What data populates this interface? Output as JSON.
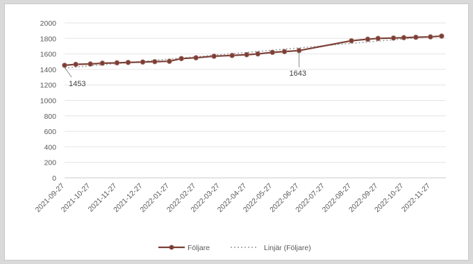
{
  "chart_data": {
    "type": "line",
    "title": "",
    "xlabel": "",
    "ylabel": "",
    "ylim": [
      0,
      2000
    ],
    "yticks": [
      0,
      200,
      400,
      600,
      800,
      1000,
      1200,
      1400,
      1600,
      1800,
      2000
    ],
    "grid": true,
    "legend_position": "bottom",
    "x_tick_labels": [
      "2021-09-27",
      "2021-10-27",
      "2021-11-27",
      "2021-12-27",
      "2022-01-27",
      "2022-02-27",
      "2022-03-27",
      "2022-04-27",
      "2022-05-27",
      "2022-06-27",
      "2022-07-27",
      "2022-08-27",
      "2022-09-27",
      "2022-10-27",
      "2022-11-27"
    ],
    "series": [
      {
        "name": "Följare",
        "color": "#7b3f36",
        "marker": "circle",
        "x": [
          "2021-09-27",
          "2021-10-10",
          "2021-10-27",
          "2021-11-10",
          "2021-11-27",
          "2021-12-10",
          "2021-12-27",
          "2022-01-10",
          "2022-01-27",
          "2022-02-10",
          "2022-02-27",
          "2022-03-20",
          "2022-04-10",
          "2022-04-27",
          "2022-05-10",
          "2022-05-27",
          "2022-06-10",
          "2022-06-27",
          "2022-08-27",
          "2022-09-15",
          "2022-09-27",
          "2022-10-15",
          "2022-10-27",
          "2022-11-10",
          "2022-11-27",
          "2022-12-10"
        ],
        "values": [
          1453,
          1465,
          1470,
          1480,
          1485,
          1490,
          1495,
          1500,
          1505,
          1540,
          1550,
          1570,
          1580,
          1590,
          1600,
          1620,
          1630,
          1643,
          1770,
          1790,
          1800,
          1805,
          1810,
          1815,
          1820,
          1830
        ]
      },
      {
        "name": "Linjär (Följare)",
        "color": "#999999",
        "style": "dotted"
      }
    ],
    "annotations": [
      {
        "x": "2021-09-27",
        "label": "1453"
      },
      {
        "x": "2022-06-27",
        "label": "1643"
      }
    ]
  }
}
